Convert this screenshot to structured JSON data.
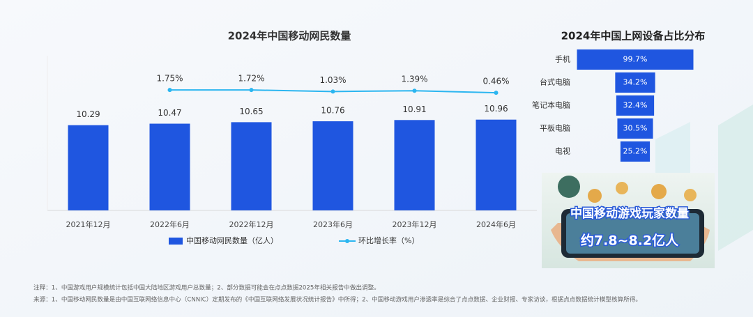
{
  "chart_data": [
    {
      "type": "bar_line",
      "title": "2024年中国移动网民数量",
      "categories": [
        "2021年12月",
        "2022年6月",
        "2022年12月",
        "2023年6月",
        "2023年12月",
        "2024年6月"
      ],
      "series": [
        {
          "name": "中国移动网民数量（亿人）",
          "type": "bar",
          "color": "#1f56e0",
          "values": [
            10.29,
            10.47,
            10.65,
            10.76,
            10.91,
            10.96
          ]
        },
        {
          "name": "环比增长率（%）",
          "type": "line",
          "axis": "y2",
          "color": "#2cb6f0",
          "values": [
            null,
            1.75,
            1.72,
            1.03,
            1.39,
            0.46
          ],
          "value_labels": [
            null,
            "1.75%",
            "1.72%",
            "1.03%",
            "1.39%",
            "0.46%"
          ]
        }
      ],
      "ylim": [
        0,
        18
      ],
      "y2lim": [
        -54,
        15
      ],
      "legend": "bottom"
    },
    {
      "type": "funnel",
      "title": "2024年中国上网设备占比分布",
      "categories": [
        "手机",
        "台式电脑",
        "笔记本电脑",
        "平板电脑",
        "电视"
      ],
      "values": [
        99.7,
        34.2,
        32.4,
        30.5,
        25.2
      ],
      "value_labels": [
        "99.7%",
        "34.2%",
        "32.4%",
        "30.5%",
        "25.2%"
      ],
      "color": "#1f56e0",
      "xlim": [
        0,
        100
      ]
    }
  ],
  "image_panel": {
    "title": "中国移动游戏玩家数量",
    "value": "约7.8~8.2亿人"
  },
  "notes": [
    "注释：1、中国游戏用户规模统计包括中国大陆地区游戏用户总数量；2、部分数据可能会在点点数据2025年相关报告中做出调整。",
    "来源：1、中国移动网民数量是由中国互联网络信息中心（CNNIC）定期发布的《中国互联网络发展状况统计报告》中所得；2、中国移动游戏用户渗透率是综合了点点数据、企业财报、专家访谈，根据点点数据统计模型核算所得。"
  ]
}
